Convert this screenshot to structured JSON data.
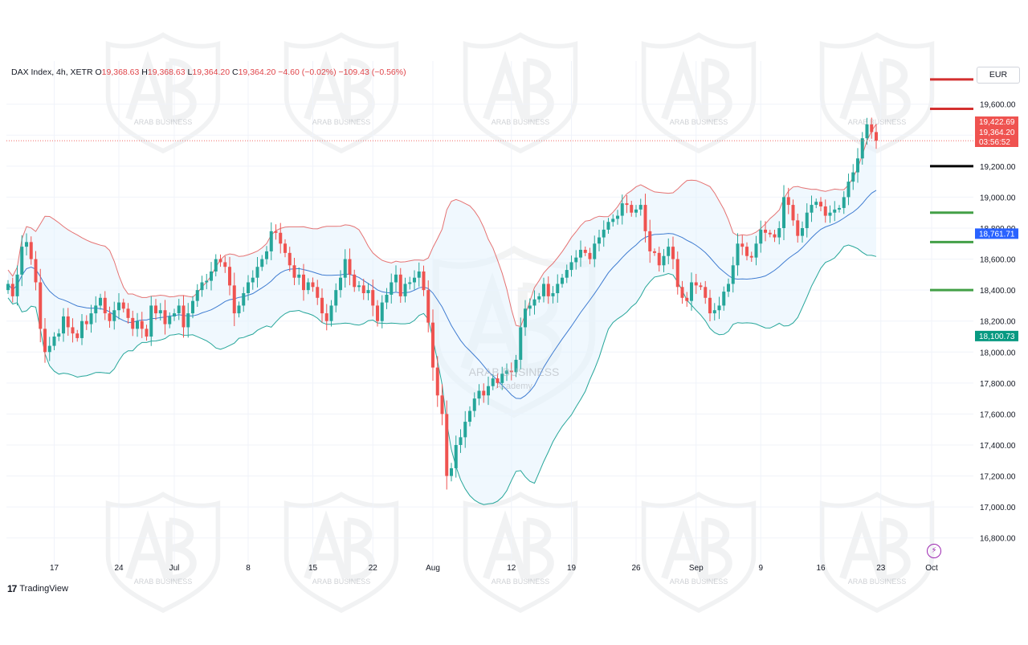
{
  "header": {
    "symbol": "DAX Index, 4h, XETR",
    "open_label": "O",
    "open": "19,368.63",
    "high_label": "H",
    "high": "19,368.63",
    "low_label": "L",
    "low": "19,364.20",
    "close_label": "C",
    "close": "19,364.20",
    "change": "−4.60 (−0.02%)",
    "change2": "−109.43 (−0.56%)"
  },
  "currency": "EUR",
  "branding": {
    "tradingview": "TradingView",
    "watermark_line1": "ARAB BUSINESS",
    "watermark_line2": "Academy"
  },
  "colors": {
    "up": "#26a69a",
    "down": "#ef5350",
    "upper_band": "#e57373",
    "lower_band": "#26a69a",
    "middle_band": "#3f7cd1",
    "band_fill": "#e3f2fd",
    "red_level": "#d32f2f",
    "black_level": "#000000",
    "green_level": "#43a047"
  },
  "chart_data": {
    "type": "candlestick",
    "title": "DAX Index, 4h, XETR",
    "ylim": [
      16700,
      19780
    ],
    "y_ticks": [
      16800,
      17000,
      17200,
      17400,
      17600,
      17800,
      18000,
      18200,
      18400,
      18600,
      18800,
      19000,
      19200,
      19400,
      19600
    ],
    "y_tick_labels": [
      "16,800.00",
      "17,000.00",
      "17,200.00",
      "17,400.00",
      "17,600.00",
      "17,800.00",
      "18,000.00",
      "18,200.00",
      "18,400.00",
      "18,600.00",
      "18,800.00",
      "19,000.00",
      "19,200.00",
      "19,400.00",
      "19,600.00"
    ],
    "x_tick_labels": [
      {
        "label": "17",
        "i": 10
      },
      {
        "label": "24",
        "i": 24
      },
      {
        "label": "Jul",
        "i": 36
      },
      {
        "label": "8",
        "i": 52
      },
      {
        "label": "15",
        "i": 66
      },
      {
        "label": "22",
        "i": 79
      },
      {
        "label": "Aug",
        "i": 92
      },
      {
        "label": "12",
        "i": 109
      },
      {
        "label": "19",
        "i": 122
      },
      {
        "label": "26",
        "i": 136
      },
      {
        "label": "Sep",
        "i": 149
      },
      {
        "label": "9",
        "i": 163
      },
      {
        "label": "16",
        "i": 176
      },
      {
        "label": "23",
        "i": 189
      },
      {
        "label": "Oct",
        "i": 200
      }
    ],
    "closes": [
      18440,
      18360,
      18500,
      18680,
      18710,
      18600,
      18450,
      18150,
      18000,
      18040,
      18100,
      18120,
      18230,
      18160,
      18120,
      18090,
      18200,
      18180,
      18250,
      18300,
      18350,
      18250,
      18200,
      18270,
      18320,
      18280,
      18220,
      18150,
      18200,
      18150,
      18100,
      18300,
      18250,
      18270,
      18180,
      18230,
      18250,
      18300,
      18160,
      18250,
      18330,
      18400,
      18450,
      18460,
      18520,
      18600,
      18580,
      18550,
      18430,
      18250,
      18300,
      18380,
      18450,
      18480,
      18550,
      18600,
      18650,
      18780,
      18770,
      18700,
      18640,
      18560,
      18480,
      18500,
      18400,
      18450,
      18420,
      18350,
      18250,
      18200,
      18300,
      18400,
      18480,
      18600,
      18500,
      18420,
      18430,
      18380,
      18400,
      18300,
      18200,
      18320,
      18370,
      18450,
      18500,
      18360,
      18440,
      18450,
      18480,
      18520,
      18400,
      18190,
      17900,
      17720,
      17600,
      17200,
      17250,
      17400,
      17450,
      17550,
      17620,
      17700,
      17750,
      17720,
      17780,
      17830,
      17800,
      17860,
      17880,
      17870,
      17950,
      18160,
      18280,
      18300,
      18340,
      18360,
      18440,
      18360,
      18380,
      18440,
      18480,
      18530,
      18580,
      18610,
      18660,
      18640,
      18600,
      18700,
      18740,
      18790,
      18840,
      18860,
      18880,
      18960,
      18950,
      18900,
      18920,
      18950,
      18780,
      18650,
      18640,
      18560,
      18620,
      18680,
      18600,
      18420,
      18350,
      18330,
      18450,
      18430,
      18420,
      18350,
      18250,
      18270,
      18300,
      18390,
      18440,
      18560,
      18700,
      18680,
      18620,
      18610,
      18700,
      18790,
      18770,
      18760,
      18740,
      18800,
      19000,
      18950,
      18850,
      18750,
      18800,
      18900,
      18950,
      18970,
      18940,
      18880,
      18900,
      18920,
      18930,
      19000,
      19100,
      19160,
      19250,
      19380,
      19470,
      19420,
      19364.2
    ],
    "levels": [
      {
        "value": 19760,
        "color": "#d32f2f",
        "kind": "red"
      },
      {
        "value": 19570,
        "color": "#d32f2f",
        "kind": "red"
      },
      {
        "value": 19200,
        "color": "#000000",
        "kind": "black"
      },
      {
        "value": 18900,
        "color": "#43a047",
        "kind": "green"
      },
      {
        "value": 18710,
        "color": "#43a047",
        "kind": "green"
      },
      {
        "value": 18400,
        "color": "#43a047",
        "kind": "green"
      }
    ],
    "price_labels": [
      {
        "value": 19422.69,
        "text": "19,422.69",
        "color": "#ef5350"
      },
      {
        "value": 19364.2,
        "text": "19,364.20",
        "color": "#ef5350"
      },
      {
        "value": 19300,
        "text": "03:56:52",
        "color": "#ef5350"
      },
      {
        "value": 18761.71,
        "text": "18,761.71",
        "color": "#2962ff"
      },
      {
        "value": 18100.73,
        "text": "18,100.73",
        "color": "#089981"
      }
    ],
    "indicator": "Bollinger Bands",
    "grid": true
  }
}
